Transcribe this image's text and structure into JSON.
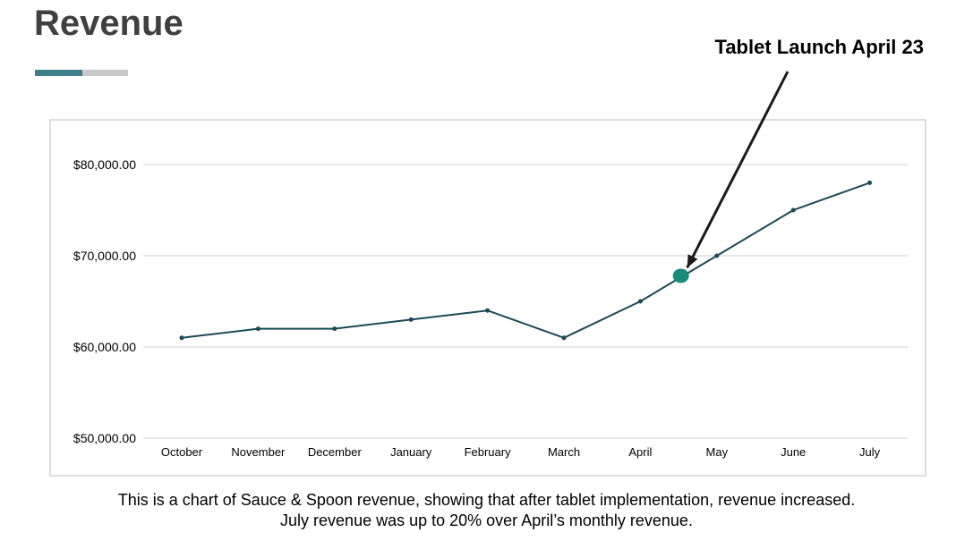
{
  "header": {
    "title": "Revenue"
  },
  "callout": {
    "text": "Tablet Launch April 23"
  },
  "caption": {
    "line1": "This is a chart of Sauce & Spoon revenue, showing that after tablet implementation, revenue increased.",
    "line2": "July revenue was up to 20% over April’s monthly revenue."
  },
  "colors": {
    "line": "#1b4a57",
    "marker": "#1a8a7a",
    "accent": "#3f7f8c",
    "grid": "#cfcfcf"
  },
  "chart_data": {
    "type": "line",
    "title": "",
    "xlabel": "",
    "ylabel": "",
    "categories": [
      "October",
      "November",
      "December",
      "January",
      "February",
      "March",
      "April",
      "May",
      "June",
      "July"
    ],
    "series": [
      {
        "values": [
          61000,
          62000,
          62000,
          63000,
          64000,
          61000,
          65000,
          70000,
          75000,
          78000
        ]
      }
    ],
    "ylim": [
      50000,
      85000
    ],
    "yticks": [
      50000,
      60000,
      70000,
      80000
    ],
    "ytick_labels": [
      "$50,000.00",
      "$60,000.00",
      "$70,000.00",
      "$80,000.00"
    ],
    "grid": true,
    "legend": "none",
    "annotation": {
      "text": "Tablet Launch April 23",
      "x_position": 6.53,
      "value": 67800
    }
  }
}
